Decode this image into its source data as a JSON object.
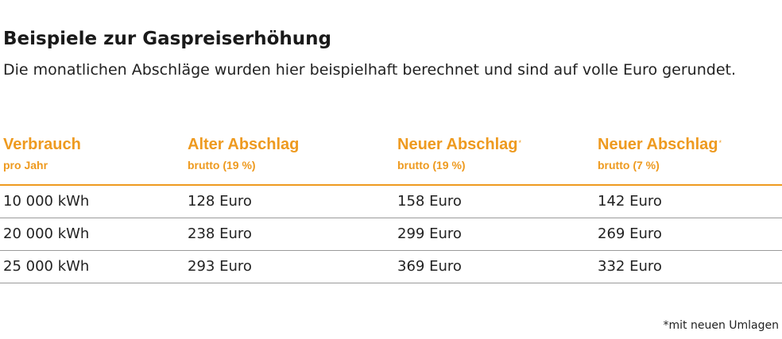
{
  "title": "Beispiele zur Gaspreiserhöhung",
  "subtitle": "Die monatlichen Abschläge wurden hier beispielhaft berechnet und sind auf volle Euro gerundet.",
  "table": {
    "columns": [
      {
        "label": "Verbrauch",
        "sub": "pro Jahr",
        "mark": ""
      },
      {
        "label": "Alter Abschlag",
        "sub": "brutto (19 %)",
        "mark": ""
      },
      {
        "label": "Neuer Abschlag",
        "sub": "brutto (19 %)",
        "mark": "*"
      },
      {
        "label": "Neuer Abschlag",
        "sub": "brutto (7 %)",
        "mark": "*"
      }
    ],
    "rows": [
      [
        "10 000 kWh",
        "128 Euro",
        "158 Euro",
        "142 Euro"
      ],
      [
        "20 000 kWh",
        "238 Euro",
        "299 Euro",
        "269 Euro"
      ],
      [
        "25 000 kWh",
        "293 Euro",
        "369 Euro",
        "332 Euro"
      ]
    ]
  },
  "footnote": "*mit neuen Umlagen",
  "colors": {
    "accent": "#ee9a1f",
    "text": "#222222",
    "rule": "#9a9a9a"
  }
}
